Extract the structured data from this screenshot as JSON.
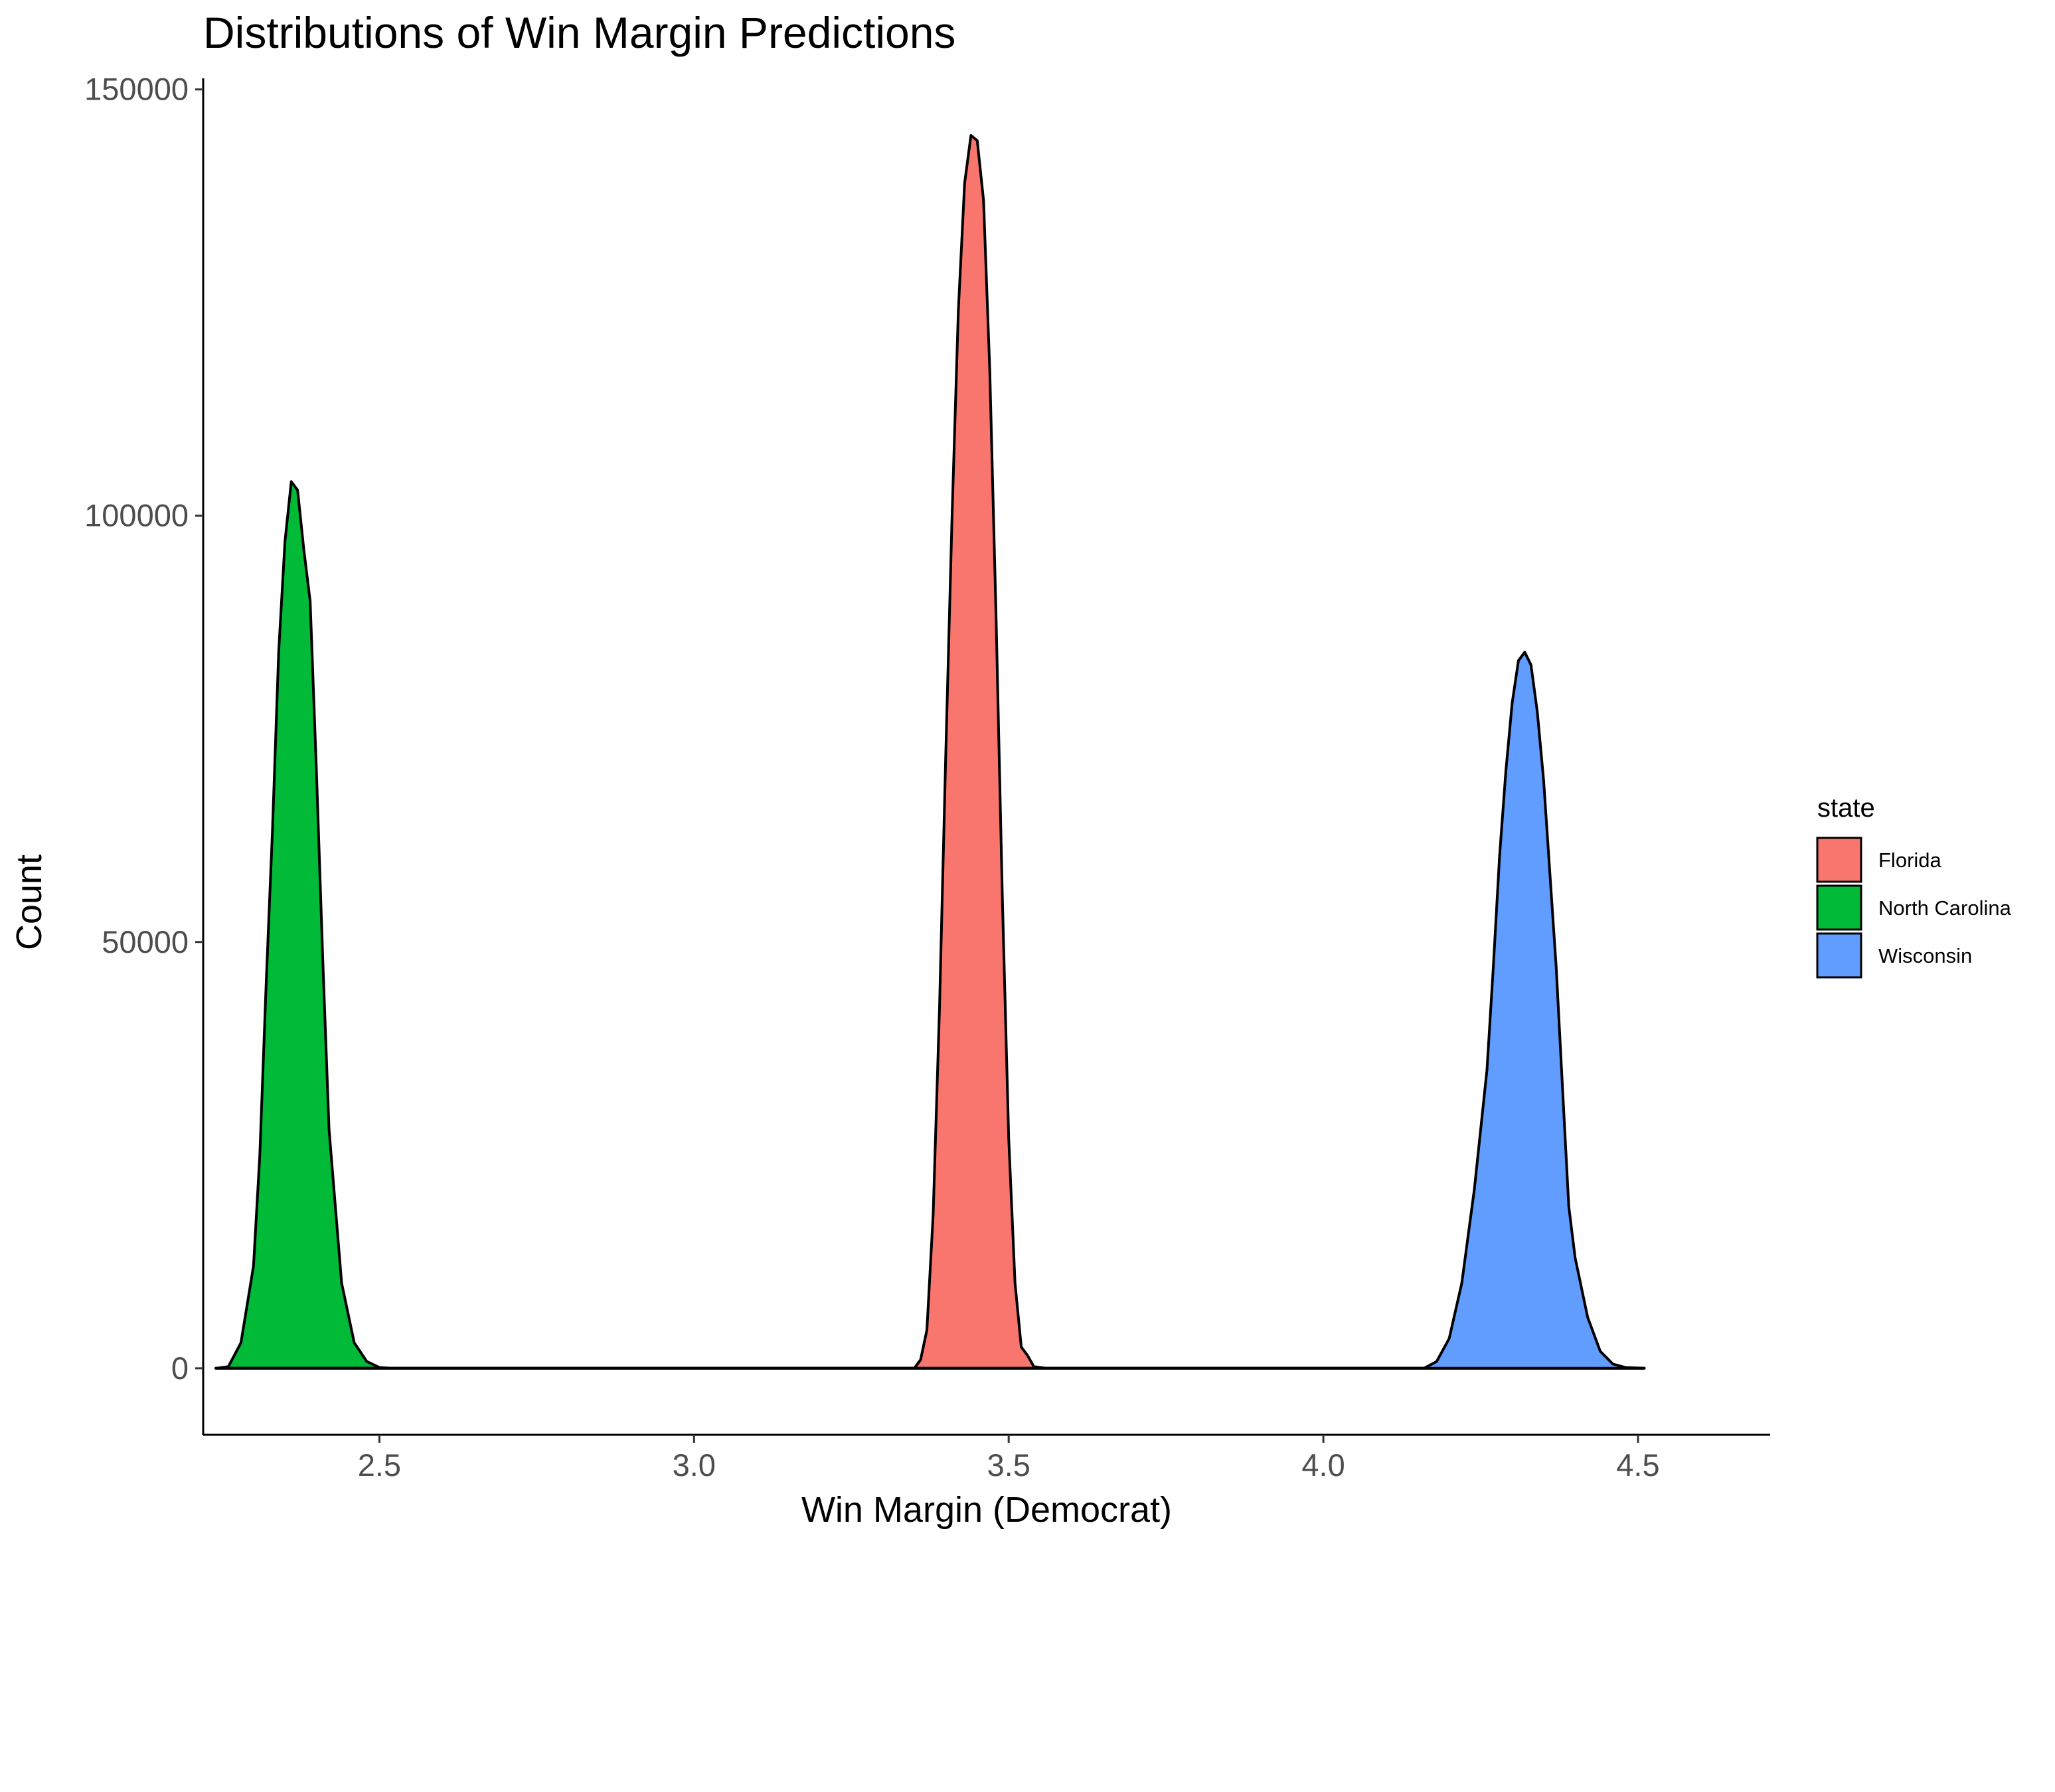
{
  "chart_data": {
    "type": "area",
    "title": "Distributions of Win Margin Predictions",
    "xlabel": "Win Margin (Democrat)",
    "ylabel": "Count",
    "xlim": [
      2.22,
      4.71
    ],
    "ylim": [
      -7800,
      151300
    ],
    "xticks": [
      2.5,
      3.0,
      3.5,
      4.0,
      4.5
    ],
    "xtick_labels": [
      "2.5",
      "3.0",
      "3.5",
      "4.0",
      "4.5"
    ],
    "yticks": [
      0,
      50000,
      100000,
      150000
    ],
    "ytick_labels": [
      "0",
      "50000",
      "100000",
      "150000"
    ],
    "grid": false,
    "legend": {
      "title": "state",
      "placement": "right"
    },
    "series": [
      {
        "name": "Florida",
        "color": "#F8766D",
        "points": [
          [
            2.24,
            0
          ],
          [
            3.35,
            0
          ],
          [
            3.36,
            1000
          ],
          [
            3.37,
            4500
          ],
          [
            3.38,
            18000
          ],
          [
            3.39,
            42000
          ],
          [
            3.4,
            72000
          ],
          [
            3.41,
            100000
          ],
          [
            3.42,
            124000
          ],
          [
            3.43,
            139000
          ],
          [
            3.44,
            144600
          ],
          [
            3.45,
            144000
          ],
          [
            3.46,
            137000
          ],
          [
            3.47,
            117000
          ],
          [
            3.48,
            88000
          ],
          [
            3.49,
            55000
          ],
          [
            3.5,
            27000
          ],
          [
            3.51,
            10000
          ],
          [
            3.52,
            2500
          ],
          [
            3.53,
            1500
          ],
          [
            3.54,
            200
          ],
          [
            3.56,
            0
          ],
          [
            4.51,
            0
          ]
        ]
      },
      {
        "name": "North Carolina",
        "color": "#00BA38",
        "points": [
          [
            2.24,
            0
          ],
          [
            2.26,
            200
          ],
          [
            2.28,
            3000
          ],
          [
            2.3,
            12000
          ],
          [
            2.31,
            25000
          ],
          [
            2.32,
            45000
          ],
          [
            2.33,
            63000
          ],
          [
            2.34,
            84000
          ],
          [
            2.35,
            97000
          ],
          [
            2.36,
            104000
          ],
          [
            2.37,
            103000
          ],
          [
            2.38,
            96000
          ],
          [
            2.39,
            90000
          ],
          [
            2.4,
            70000
          ],
          [
            2.41,
            48000
          ],
          [
            2.42,
            28000
          ],
          [
            2.44,
            10000
          ],
          [
            2.46,
            3000
          ],
          [
            2.48,
            800
          ],
          [
            2.5,
            100
          ],
          [
            2.52,
            0
          ],
          [
            4.51,
            0
          ]
        ]
      },
      {
        "name": "Wisconsin",
        "color": "#619CFF",
        "points": [
          [
            2.24,
            0
          ],
          [
            4.16,
            0
          ],
          [
            4.18,
            800
          ],
          [
            4.2,
            3500
          ],
          [
            4.22,
            10000
          ],
          [
            4.24,
            21000
          ],
          [
            4.26,
            35000
          ],
          [
            4.27,
            47000
          ],
          [
            4.28,
            60000
          ],
          [
            4.29,
            70000
          ],
          [
            4.3,
            78000
          ],
          [
            4.31,
            83000
          ],
          [
            4.32,
            84000
          ],
          [
            4.33,
            82500
          ],
          [
            4.34,
            77000
          ],
          [
            4.35,
            69000
          ],
          [
            4.36,
            58000
          ],
          [
            4.37,
            47000
          ],
          [
            4.38,
            33000
          ],
          [
            4.39,
            19000
          ],
          [
            4.4,
            13000
          ],
          [
            4.42,
            6000
          ],
          [
            4.44,
            2000
          ],
          [
            4.46,
            500
          ],
          [
            4.48,
            100
          ],
          [
            4.51,
            0
          ]
        ]
      }
    ]
  }
}
